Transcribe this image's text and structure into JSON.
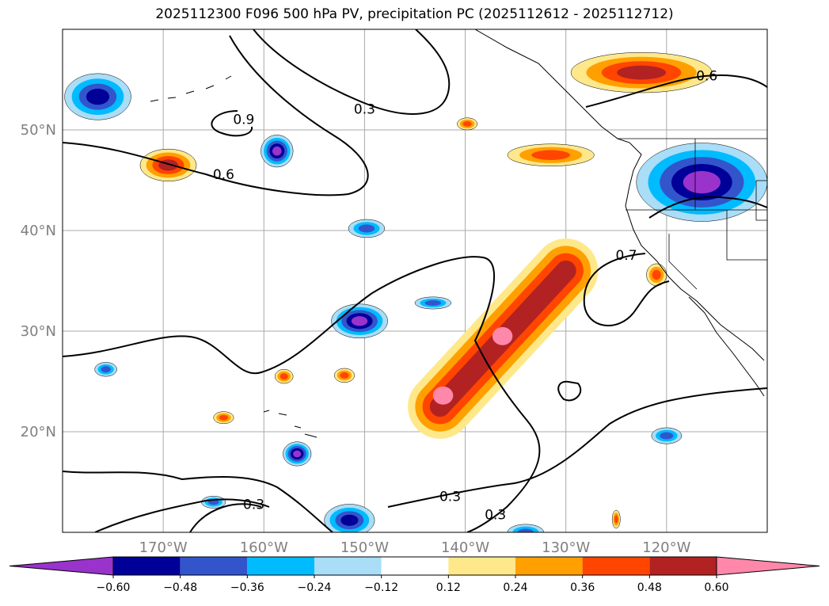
{
  "chart_data": {
    "type": "contour-map",
    "title": "2025112300 F096 500 hPa PV, precipitation PC (2025112612 - 2025112712)",
    "x_range_deg": [
      -180,
      -110
    ],
    "y_range_deg": [
      10,
      60
    ],
    "gridlines": true,
    "x_ticks": [
      {
        "value": -170,
        "label": "170°W"
      },
      {
        "value": -160,
        "label": "160°W"
      },
      {
        "value": -150,
        "label": "150°W"
      },
      {
        "value": -140,
        "label": "140°W"
      },
      {
        "value": -130,
        "label": "130°W"
      },
      {
        "value": -120,
        "label": "120°W"
      }
    ],
    "y_ticks": [
      {
        "value": 20,
        "label": "20°N"
      },
      {
        "value": 30,
        "label": "30°N"
      },
      {
        "value": 40,
        "label": "40°N"
      },
      {
        "value": 50,
        "label": "50°N"
      }
    ],
    "filled_field": "precipitation PC",
    "contour_field": "500 hPa PV",
    "contour_labels": [
      {
        "text": "0.9",
        "lon": -162,
        "lat": 51
      },
      {
        "text": "0.3",
        "lon": -150,
        "lat": 52
      },
      {
        "text": "0.6",
        "lon": -164,
        "lat": 45.5
      },
      {
        "text": "0.6",
        "lon": -116,
        "lat": 55.3
      },
      {
        "text": "0.7",
        "lon": -124,
        "lat": 37.5
      },
      {
        "text": "0.3",
        "lon": -161,
        "lat": 12.7
      },
      {
        "text": "0.3",
        "lon": -141.5,
        "lat": 13.5
      },
      {
        "text": "0.3",
        "lon": -137,
        "lat": 11.7
      }
    ],
    "colorbar": {
      "orientation": "horizontal",
      "extend": "both",
      "levels": [
        -0.72,
        -0.6,
        -0.48,
        -0.36,
        -0.24,
        -0.12,
        0.12,
        0.24,
        0.36,
        0.48,
        0.6,
        0.72
      ],
      "tick_labels": [
        "−0.60",
        "−0.48",
        "−0.36",
        "−0.24",
        "−0.12",
        "0.12",
        "0.24",
        "0.36",
        "0.48",
        "0.60"
      ],
      "colors": [
        "#9933cc",
        "#000099",
        "#3355cc",
        "#00bbff",
        "#aaddf7",
        "#ffffff",
        "#ffe88a",
        "#ffa000",
        "#ff4500",
        "#b22222",
        "#ff88aa"
      ]
    },
    "precip_blobs": [
      {
        "lon": -176.5,
        "lat": 53.3,
        "rx": 3.3,
        "ry": 2.3,
        "level": -0.48
      },
      {
        "lon": -158.7,
        "lat": 47.9,
        "rx": 1.6,
        "ry": 1.6,
        "level": -0.6
      },
      {
        "lon": -169.5,
        "lat": 46.5,
        "rx": 2.8,
        "ry": 1.6,
        "level": 0.48
      },
      {
        "lon": -139.8,
        "lat": 50.6,
        "rx": 1.0,
        "ry": 0.6,
        "level": 0.36
      },
      {
        "lon": -131.5,
        "lat": 47.5,
        "rx": 4.3,
        "ry": 1.1,
        "level": 0.36
      },
      {
        "lon": -122.5,
        "lat": 55.7,
        "rx": 7.0,
        "ry": 2.0,
        "level": 0.48
      },
      {
        "lon": -116.5,
        "lat": 44.8,
        "rx": 6.5,
        "ry": 3.9,
        "level": -0.6
      },
      {
        "lon": -149.8,
        "lat": 40.2,
        "rx": 1.8,
        "ry": 0.9,
        "level": -0.36
      },
      {
        "lon": -150.5,
        "lat": 31.0,
        "rx": 2.8,
        "ry": 1.7,
        "level": -0.6
      },
      {
        "lon": -143.2,
        "lat": 32.8,
        "rx": 1.8,
        "ry": 0.6,
        "level": -0.36
      },
      {
        "lon": -121.0,
        "lat": 35.6,
        "rx": 1.0,
        "ry": 1.1,
        "level": 0.36
      },
      {
        "lon": -175.7,
        "lat": 26.2,
        "rx": 1.1,
        "ry": 0.7,
        "level": -0.36
      },
      {
        "lon": -158.0,
        "lat": 25.5,
        "rx": 0.9,
        "ry": 0.7,
        "level": 0.36
      },
      {
        "lon": -152.0,
        "lat": 25.6,
        "rx": 1.0,
        "ry": 0.7,
        "level": 0.36
      },
      {
        "lon": -164.0,
        "lat": 21.4,
        "rx": 1.0,
        "ry": 0.6,
        "level": 0.36
      },
      {
        "lon": -156.7,
        "lat": 17.8,
        "rx": 1.4,
        "ry": 1.2,
        "level": -0.6
      },
      {
        "lon": -165.0,
        "lat": 13.0,
        "rx": 1.2,
        "ry": 0.6,
        "level": -0.36
      },
      {
        "lon": -151.5,
        "lat": 11.2,
        "rx": 2.5,
        "ry": 1.6,
        "level": -0.48
      },
      {
        "lon": -120.0,
        "lat": 19.6,
        "rx": 1.5,
        "ry": 0.8,
        "level": -0.36
      },
      {
        "lon": -134.0,
        "lat": 10.0,
        "rx": 1.8,
        "ry": 0.8,
        "level": -0.36
      },
      {
        "lon": -125.0,
        "lat": 11.3,
        "rx": 0.4,
        "ry": 0.9,
        "level": 0.36
      }
    ],
    "precip_bands": [
      {
        "from": [
          -142.5,
          22.5
        ],
        "to": [
          -130.0,
          36.0
        ],
        "width": 3.2,
        "level": 0.48
      }
    ]
  }
}
